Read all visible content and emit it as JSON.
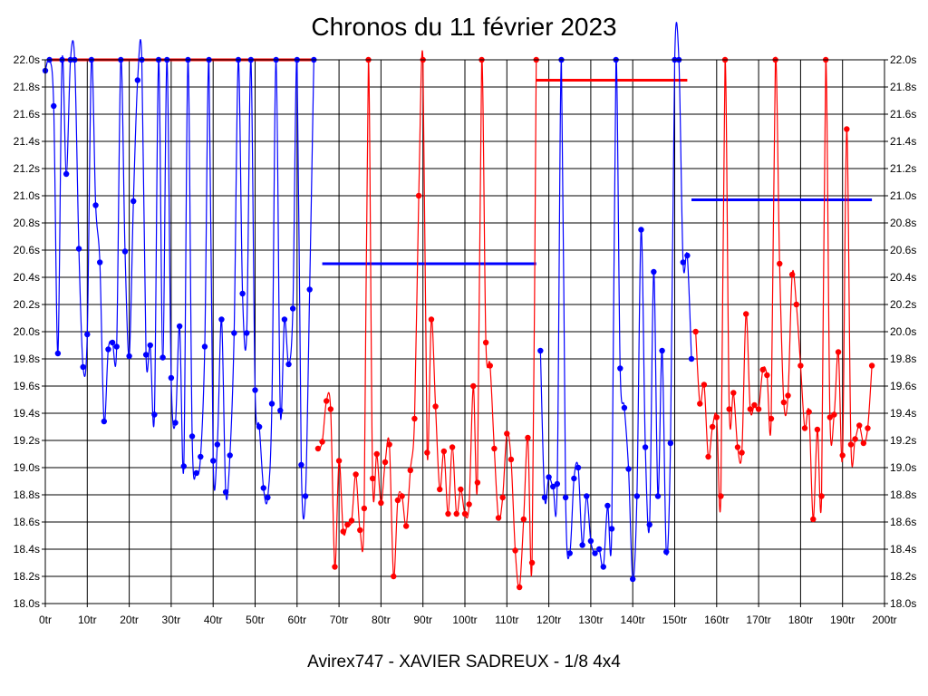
{
  "chart_data": {
    "type": "line",
    "title": "Chronos du 11 février 2023",
    "subtitle": "Avirex747 - XAVIER SADREUX - 1/8 4x4",
    "xlim": [
      0,
      200
    ],
    "ylim": [
      18.0,
      22.0
    ],
    "grid": true,
    "x_ticks": [
      {
        "value": 0,
        "label": "0tr"
      },
      {
        "value": 10,
        "label": "10tr"
      },
      {
        "value": 20,
        "label": "20tr"
      },
      {
        "value": 30,
        "label": "30tr"
      },
      {
        "value": 40,
        "label": "40tr"
      },
      {
        "value": 50,
        "label": "50tr"
      },
      {
        "value": 60,
        "label": "60tr"
      },
      {
        "value": 70,
        "label": "70tr"
      },
      {
        "value": 80,
        "label": "80tr"
      },
      {
        "value": 90,
        "label": "90tr"
      },
      {
        "value": 100,
        "label": "100tr"
      },
      {
        "value": 110,
        "label": "110tr"
      },
      {
        "value": 120,
        "label": "120tr"
      },
      {
        "value": 130,
        "label": "130tr"
      },
      {
        "value": 140,
        "label": "140tr"
      },
      {
        "value": 150,
        "label": "150tr"
      },
      {
        "value": 160,
        "label": "160tr"
      },
      {
        "value": 170,
        "label": "170tr"
      },
      {
        "value": 180,
        "label": "180tr"
      },
      {
        "value": 190,
        "label": "190tr"
      },
      {
        "value": 200,
        "label": "200tr"
      }
    ],
    "y_ticks": [
      {
        "value": 18.0,
        "label": "18.0s"
      },
      {
        "value": 18.2,
        "label": "18.2s"
      },
      {
        "value": 18.4,
        "label": "18.4s"
      },
      {
        "value": 18.6,
        "label": "18.6s"
      },
      {
        "value": 18.8,
        "label": "18.8s"
      },
      {
        "value": 19.0,
        "label": "19.0s"
      },
      {
        "value": 19.2,
        "label": "19.2s"
      },
      {
        "value": 19.4,
        "label": "19.4s"
      },
      {
        "value": 19.6,
        "label": "19.6s"
      },
      {
        "value": 19.8,
        "label": "19.8s"
      },
      {
        "value": 20.0,
        "label": "20.0s"
      },
      {
        "value": 20.2,
        "label": "20.2s"
      },
      {
        "value": 20.4,
        "label": "20.4s"
      },
      {
        "value": 20.6,
        "label": "20.6s"
      },
      {
        "value": 20.8,
        "label": "20.8s"
      },
      {
        "value": 21.0,
        "label": "21.0s"
      },
      {
        "value": 21.2,
        "label": "21.2s"
      },
      {
        "value": 21.4,
        "label": "21.4s"
      },
      {
        "value": 21.6,
        "label": "21.6s"
      },
      {
        "value": 21.8,
        "label": "21.8s"
      },
      {
        "value": 22.0,
        "label": "22.0s"
      }
    ],
    "series": [
      {
        "color": "#0000ff",
        "points": [
          [
            0,
            21.92
          ],
          [
            1,
            22.0
          ],
          [
            2,
            21.66
          ],
          [
            3,
            19.84
          ],
          [
            4,
            22.0
          ],
          [
            5,
            21.16
          ],
          [
            6,
            22.0
          ],
          [
            7,
            22.0
          ],
          [
            8,
            20.61
          ],
          [
            9,
            19.74
          ],
          [
            10,
            19.98
          ],
          [
            11,
            22.0
          ],
          [
            12,
            20.93
          ],
          [
            13,
            20.51
          ],
          [
            14,
            19.34
          ],
          [
            15,
            19.87
          ],
          [
            16,
            19.92
          ],
          [
            17,
            19.89
          ],
          [
            18,
            22.0
          ],
          [
            19,
            20.59
          ],
          [
            20,
            19.82
          ],
          [
            21,
            20.96
          ],
          [
            22,
            21.85
          ],
          [
            23,
            22.0
          ],
          [
            24,
            19.83
          ],
          [
            25,
            19.9
          ],
          [
            26,
            19.39
          ],
          [
            27,
            22.0
          ],
          [
            28,
            19.81
          ],
          [
            29,
            22.0
          ],
          [
            30,
            19.66
          ],
          [
            31,
            19.33
          ],
          [
            32,
            20.04
          ],
          [
            33,
            19.01
          ],
          [
            34,
            22.0
          ],
          [
            35,
            19.23
          ],
          [
            36,
            18.96
          ],
          [
            37,
            19.08
          ],
          [
            38,
            19.89
          ],
          [
            39,
            22.0
          ],
          [
            40,
            19.05
          ],
          [
            41,
            19.17
          ],
          [
            42,
            20.09
          ],
          [
            43,
            18.82
          ],
          [
            44,
            19.09
          ],
          [
            45,
            19.99
          ],
          [
            46,
            22.0
          ],
          [
            47,
            20.28
          ],
          [
            48,
            19.99
          ],
          [
            49,
            22.0
          ],
          [
            50,
            19.57
          ],
          [
            51,
            19.3
          ],
          [
            52,
            18.85
          ],
          [
            53,
            18.78
          ],
          [
            54,
            19.47
          ],
          [
            55,
            22.0
          ],
          [
            56,
            19.42
          ],
          [
            57,
            20.09
          ],
          [
            58,
            19.76
          ],
          [
            59,
            20.17
          ],
          [
            60,
            22.0
          ],
          [
            61,
            19.02
          ],
          [
            62,
            18.79
          ],
          [
            63,
            20.31
          ],
          [
            64,
            22.0
          ]
        ]
      },
      {
        "color": "#ff0000",
        "points": [
          [
            65,
            19.14
          ],
          [
            66,
            19.19
          ],
          [
            67,
            19.49
          ],
          [
            68,
            19.43
          ],
          [
            69,
            18.27
          ],
          [
            70,
            19.05
          ],
          [
            71,
            18.53
          ],
          [
            72,
            18.58
          ],
          [
            73,
            18.61
          ],
          [
            74,
            18.95
          ],
          [
            75,
            18.54
          ],
          [
            76,
            18.7
          ],
          [
            77,
            22.0
          ],
          [
            78,
            18.92
          ],
          [
            79,
            19.1
          ],
          [
            80,
            18.74
          ],
          [
            81,
            19.04
          ],
          [
            82,
            19.17
          ],
          [
            83,
            18.2
          ],
          [
            84,
            18.76
          ],
          [
            85,
            18.79
          ],
          [
            86,
            18.57
          ],
          [
            87,
            18.98
          ],
          [
            88,
            19.36
          ],
          [
            89,
            21.0
          ],
          [
            90,
            22.0
          ],
          [
            91,
            19.11
          ],
          [
            92,
            20.09
          ],
          [
            93,
            19.45
          ],
          [
            94,
            18.84
          ],
          [
            95,
            19.12
          ],
          [
            96,
            18.66
          ],
          [
            97,
            19.15
          ],
          [
            98,
            18.66
          ],
          [
            99,
            18.84
          ],
          [
            100,
            18.66
          ],
          [
            101,
            18.73
          ],
          [
            102,
            19.6
          ],
          [
            103,
            18.89
          ],
          [
            104,
            22.0
          ],
          [
            105,
            19.92
          ],
          [
            106,
            19.75
          ],
          [
            107,
            19.14
          ],
          [
            108,
            18.63
          ],
          [
            109,
            18.78
          ],
          [
            110,
            19.25
          ],
          [
            111,
            19.06
          ],
          [
            112,
            18.39
          ],
          [
            113,
            18.12
          ],
          [
            114,
            18.62
          ],
          [
            115,
            19.22
          ],
          [
            116,
            18.3
          ],
          [
            117,
            22.0
          ]
        ]
      },
      {
        "color": "#0000ff",
        "points": [
          [
            118,
            19.86
          ],
          [
            119,
            18.78
          ],
          [
            120,
            18.93
          ],
          [
            121,
            18.86
          ],
          [
            122,
            18.88
          ],
          [
            123,
            22.0
          ],
          [
            124,
            18.78
          ],
          [
            125,
            18.37
          ],
          [
            126,
            18.92
          ],
          [
            127,
            19.0
          ],
          [
            128,
            18.43
          ],
          [
            129,
            18.79
          ],
          [
            130,
            18.46
          ],
          [
            131,
            18.37
          ],
          [
            132,
            18.4
          ],
          [
            133,
            18.27
          ],
          [
            134,
            18.72
          ],
          [
            135,
            18.55
          ],
          [
            136,
            22.0
          ],
          [
            137,
            19.73
          ],
          [
            138,
            19.44
          ],
          [
            139,
            18.99
          ],
          [
            140,
            18.18
          ],
          [
            141,
            18.79
          ],
          [
            142,
            20.75
          ],
          [
            143,
            19.15
          ],
          [
            144,
            18.58
          ],
          [
            145,
            20.44
          ],
          [
            146,
            18.79
          ],
          [
            147,
            19.86
          ],
          [
            148,
            18.38
          ],
          [
            149,
            19.18
          ],
          [
            150,
            22.0
          ],
          [
            151,
            22.0
          ],
          [
            152,
            20.51
          ],
          [
            153,
            20.56
          ],
          [
            154,
            19.8
          ]
        ]
      },
      {
        "color": "#ff0000",
        "points": [
          [
            155,
            20.0
          ],
          [
            156,
            19.47
          ],
          [
            157,
            19.61
          ],
          [
            158,
            19.08
          ],
          [
            159,
            19.3
          ],
          [
            160,
            19.37
          ],
          [
            161,
            18.79
          ],
          [
            162,
            22.0
          ],
          [
            163,
            19.43
          ],
          [
            164,
            19.55
          ],
          [
            165,
            19.15
          ],
          [
            166,
            19.11
          ],
          [
            167,
            20.13
          ],
          [
            168,
            19.43
          ],
          [
            169,
            19.46
          ],
          [
            170,
            19.43
          ],
          [
            171,
            19.72
          ],
          [
            172,
            19.68
          ],
          [
            173,
            19.36
          ],
          [
            174,
            22.0
          ],
          [
            175,
            20.5
          ],
          [
            176,
            19.48
          ],
          [
            177,
            19.53
          ],
          [
            178,
            20.42
          ],
          [
            179,
            20.2
          ],
          [
            180,
            19.75
          ],
          [
            181,
            19.29
          ],
          [
            182,
            19.41
          ],
          [
            183,
            18.62
          ],
          [
            184,
            19.28
          ],
          [
            185,
            18.79
          ],
          [
            186,
            22.0
          ],
          [
            187,
            19.37
          ],
          [
            188,
            19.39
          ],
          [
            189,
            19.85
          ],
          [
            190,
            19.09
          ],
          [
            191,
            21.49
          ],
          [
            192,
            19.17
          ],
          [
            193,
            19.21
          ],
          [
            194,
            19.31
          ],
          [
            195,
            19.18
          ],
          [
            196,
            19.29
          ],
          [
            197,
            19.75
          ]
        ]
      }
    ],
    "reference_lines": [
      {
        "color": "#ff0000",
        "x": [
          1,
          64
        ],
        "y": 22.0
      },
      {
        "color": "#0000ff",
        "x": [
          66,
          117
        ],
        "y": 20.5
      },
      {
        "color": "#ff0000",
        "x": [
          117,
          153
        ],
        "y": 21.85
      },
      {
        "color": "#0000ff",
        "x": [
          154,
          197
        ],
        "y": 20.97
      }
    ]
  }
}
